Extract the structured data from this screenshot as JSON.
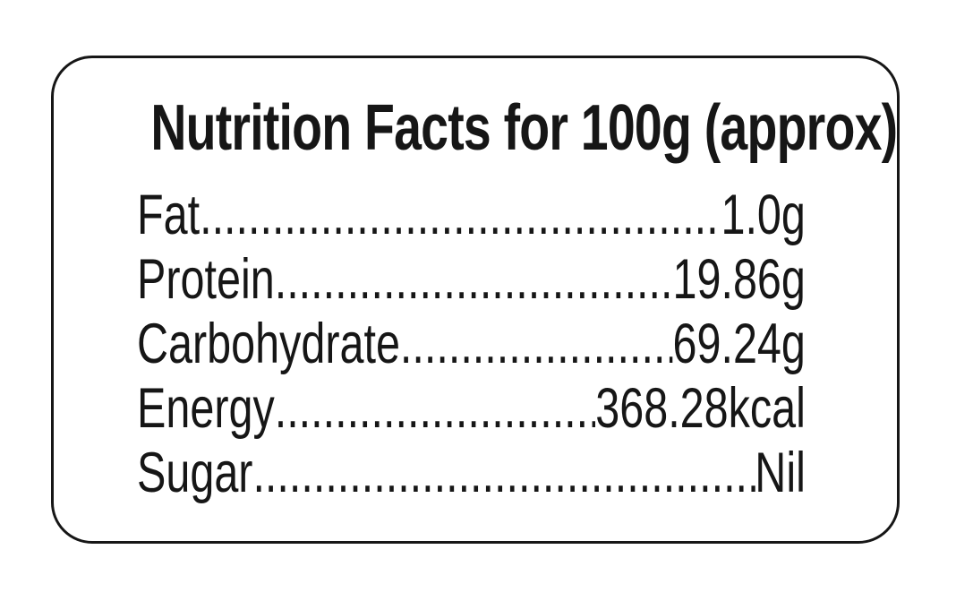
{
  "label": {
    "title": "Nutrition Facts for 100g (approx)",
    "rows": [
      {
        "name": "Fat",
        "value": "1.0g"
      },
      {
        "name": "Protein",
        "value": "19.86g"
      },
      {
        "name": "Carbohydrate",
        "value": "69.24g"
      },
      {
        "name": "Energy",
        "value": "368.28kcal"
      },
      {
        "name": "Sugar",
        "value": "Nil"
      }
    ],
    "colors": {
      "text": "#161616",
      "border": "#161616",
      "background": "#ffffff"
    }
  }
}
